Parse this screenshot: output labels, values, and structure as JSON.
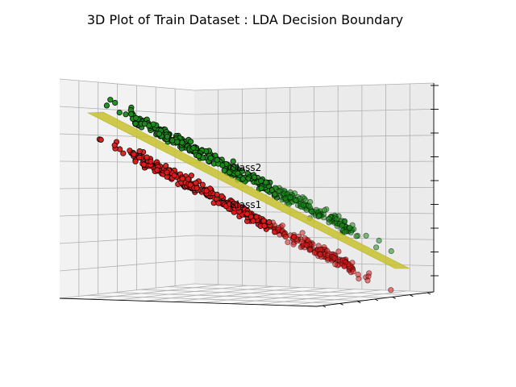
{
  "chart_data": {
    "type": "scatter",
    "title": "3D Plot of Train Dataset : LDA Decision Boundary",
    "xlabel": "",
    "ylabel": "",
    "zlabel": "",
    "grid": true,
    "projection": "3d",
    "series": [
      {
        "name": "Class2",
        "color": "#1a8c1a",
        "band_offset": 0.0,
        "count": 420
      },
      {
        "name": "Class1",
        "color": "#e01a1a",
        "band_offset": 0.42,
        "count": 420
      }
    ],
    "decision_surface": {
      "type": "plane",
      "color": "#c8c22e"
    },
    "annotations": [
      {
        "text": "Class2",
        "series": "Class2"
      },
      {
        "text": "Class1",
        "series": "Class1"
      }
    ]
  }
}
